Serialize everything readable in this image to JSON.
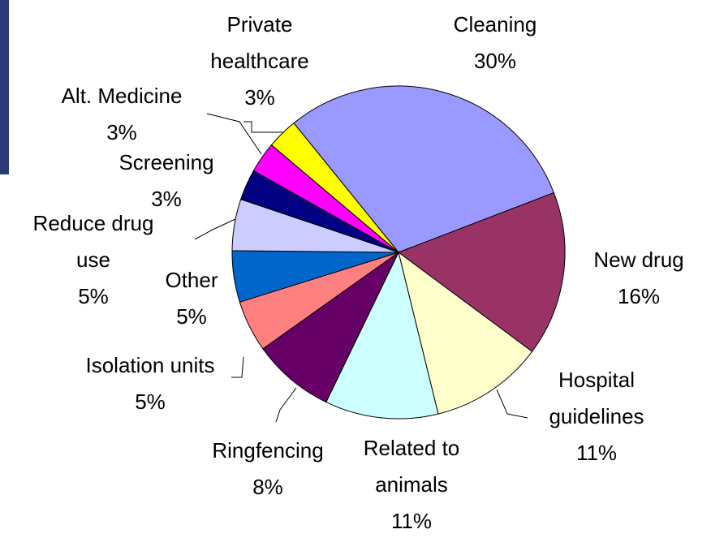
{
  "chart_data": {
    "type": "pie",
    "labels": [
      "Cleaning",
      "New drug",
      "Hospital guidelines",
      "Related to animals",
      "Ringfencing",
      "Isolation units",
      "Other",
      "Reduce drug use",
      "Screening",
      "Alt. Medicine",
      "Private healthcare"
    ],
    "values": [
      30,
      16,
      11,
      11,
      8,
      5,
      5,
      5,
      3,
      3,
      3
    ],
    "value_labels": [
      "30%",
      "16%",
      "11%",
      "11%",
      "8%",
      "5%",
      "5%",
      "5%",
      "3%",
      "3%",
      "3%"
    ],
    "colors": [
      "#9999ff",
      "#993366",
      "#ffffcc",
      "#ccffff",
      "#660066",
      "#ff8080",
      "#0066cc",
      "#ccccff",
      "#000080",
      "#ff00ff",
      "#ffff00"
    ]
  }
}
